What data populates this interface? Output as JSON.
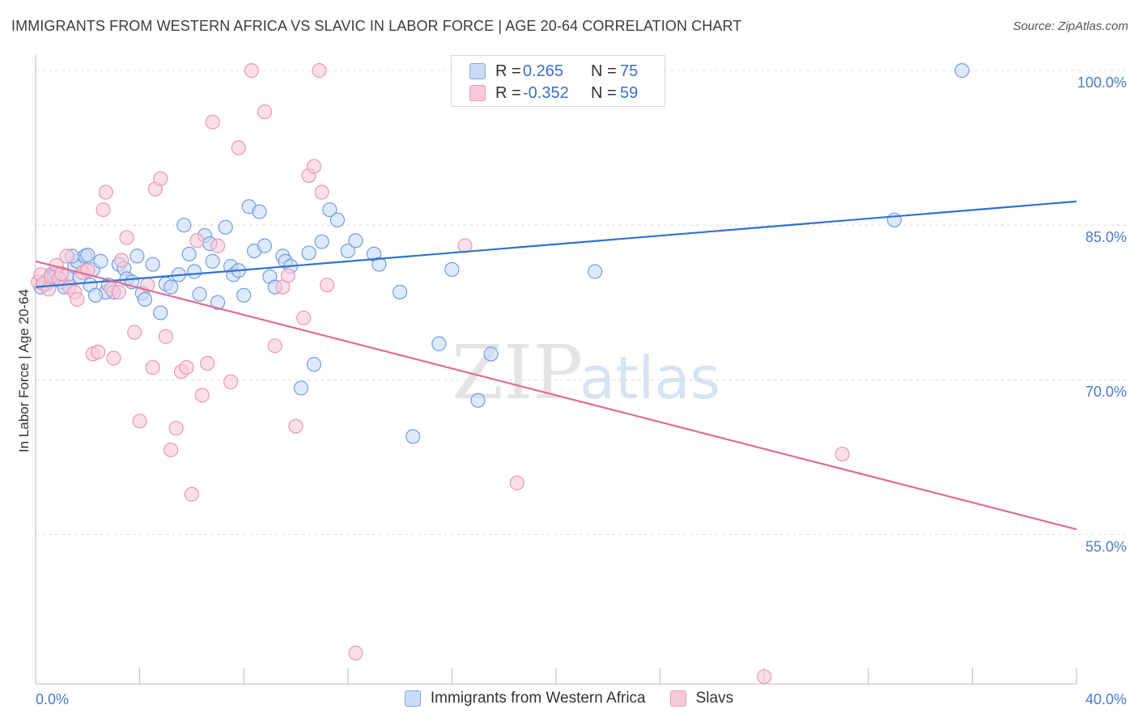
{
  "title": "IMMIGRANTS FROM WESTERN AFRICA VS SLAVIC IN LABOR FORCE | AGE 20-64 CORRELATION CHART",
  "source": "Source: ZipAtlas.com",
  "watermark": {
    "zip": "ZIP",
    "atlas": "atlas"
  },
  "legend": {
    "r_label": "R =",
    "n_label": "N =",
    "rows": [
      {
        "r": "0.265",
        "n": "75",
        "fill": "#c9dbf5",
        "stroke": "#7fa6e0"
      },
      {
        "r": "-0.352",
        "n": "59",
        "fill": "#f8cad9",
        "stroke": "#ec9ab4"
      }
    ]
  },
  "colors": {
    "blue_fill": "#c9dbf5",
    "blue_stroke": "#6f9de0",
    "blue_line": "#2f72d0",
    "pink_fill": "#f8cad9",
    "pink_stroke": "#ea98b2",
    "pink_line": "#e16b96",
    "tick_label": "#4a7cc9",
    "grid": "#dcdcdc"
  },
  "chart_data": {
    "type": "scatter",
    "title": "IMMIGRANTS FROM WESTERN AFRICA VS SLAVIC IN LABOR FORCE | AGE 20-64 CORRELATION CHART",
    "xlabel": "",
    "ylabel": "In Labor Force | Age 20-64",
    "xlim": [
      0,
      40
    ],
    "ylim": [
      40.5,
      101.5
    ],
    "x_tick_labels": [
      {
        "value": 0,
        "label": "0.0%"
      },
      {
        "value": 40,
        "label": "40.0%"
      }
    ],
    "y_tick_labels": [
      {
        "value": 100,
        "label": "100.0%"
      },
      {
        "value": 85,
        "label": "85.0%"
      },
      {
        "value": 70,
        "label": "70.0%"
      },
      {
        "value": 55,
        "label": "55.0%"
      }
    ],
    "grid": true,
    "series": [
      {
        "name": "Immigrants from Western Africa",
        "color": "#6f9de0",
        "trend": {
          "x": [
            0,
            40
          ],
          "y": [
            79.0,
            87.3
          ]
        },
        "points": [
          [
            0.2,
            79.0
          ],
          [
            0.4,
            79.3
          ],
          [
            0.5,
            79.8
          ],
          [
            0.6,
            80.2
          ],
          [
            0.7,
            80.0
          ],
          [
            0.8,
            80.3
          ],
          [
            1.0,
            79.5
          ],
          [
            1.1,
            79.0
          ],
          [
            1.2,
            80.1
          ],
          [
            1.5,
            81.0
          ],
          [
            1.6,
            81.5
          ],
          [
            1.7,
            80.0
          ],
          [
            1.9,
            82.0
          ],
          [
            2.0,
            82.1
          ],
          [
            2.1,
            79.2
          ],
          [
            2.2,
            80.7
          ],
          [
            2.5,
            81.5
          ],
          [
            2.7,
            78.5
          ],
          [
            2.8,
            79.2
          ],
          [
            3.0,
            78.5
          ],
          [
            3.2,
            81.2
          ],
          [
            3.4,
            80.8
          ],
          [
            3.5,
            79.8
          ],
          [
            3.7,
            79.5
          ],
          [
            3.9,
            82.0
          ],
          [
            4.1,
            78.4
          ],
          [
            4.2,
            77.8
          ],
          [
            4.5,
            81.2
          ],
          [
            4.8,
            76.5
          ],
          [
            5.0,
            79.3
          ],
          [
            5.2,
            79.0
          ],
          [
            5.5,
            80.2
          ],
          [
            5.7,
            85.0
          ],
          [
            5.9,
            82.2
          ],
          [
            6.1,
            80.5
          ],
          [
            6.3,
            78.3
          ],
          [
            6.5,
            84.0
          ],
          [
            6.7,
            83.2
          ],
          [
            6.8,
            81.5
          ],
          [
            7.0,
            77.5
          ],
          [
            7.3,
            84.8
          ],
          [
            7.5,
            81.0
          ],
          [
            7.6,
            80.2
          ],
          [
            7.8,
            80.6
          ],
          [
            8.0,
            78.2
          ],
          [
            8.2,
            86.8
          ],
          [
            8.4,
            82.5
          ],
          [
            8.6,
            86.3
          ],
          [
            8.8,
            83.0
          ],
          [
            9.0,
            80.0
          ],
          [
            9.2,
            79.0
          ],
          [
            9.5,
            82.0
          ],
          [
            9.6,
            81.5
          ],
          [
            9.8,
            81.0
          ],
          [
            10.2,
            69.2
          ],
          [
            10.5,
            82.3
          ],
          [
            10.7,
            71.5
          ],
          [
            11.0,
            83.4
          ],
          [
            11.3,
            86.5
          ],
          [
            11.6,
            85.5
          ],
          [
            12.0,
            82.5
          ],
          [
            12.3,
            83.5
          ],
          [
            13.0,
            82.2
          ],
          [
            13.2,
            81.2
          ],
          [
            14.0,
            78.5
          ],
          [
            14.5,
            64.5
          ],
          [
            15.5,
            73.5
          ],
          [
            16.0,
            80.7
          ],
          [
            17.0,
            68.0
          ],
          [
            17.5,
            72.5
          ],
          [
            21.5,
            80.5
          ],
          [
            33.0,
            85.5
          ],
          [
            35.6,
            100.0
          ],
          [
            1.4,
            82.0
          ],
          [
            2.3,
            78.2
          ]
        ]
      },
      {
        "name": "Slavs",
        "color": "#ea98b2",
        "trend": {
          "x": [
            0,
            40
          ],
          "y": [
            81.5,
            55.5
          ]
        },
        "points": [
          [
            0.1,
            79.5
          ],
          [
            0.2,
            80.2
          ],
          [
            0.3,
            79.3
          ],
          [
            0.5,
            78.8
          ],
          [
            0.6,
            80.0
          ],
          [
            0.8,
            81.1
          ],
          [
            0.9,
            79.8
          ],
          [
            1.0,
            80.3
          ],
          [
            1.2,
            82.0
          ],
          [
            1.3,
            79.0
          ],
          [
            1.5,
            78.5
          ],
          [
            1.6,
            77.8
          ],
          [
            1.8,
            80.4
          ],
          [
            2.0,
            80.6
          ],
          [
            2.2,
            72.5
          ],
          [
            2.4,
            72.7
          ],
          [
            2.6,
            86.5
          ],
          [
            2.7,
            88.2
          ],
          [
            2.9,
            78.8
          ],
          [
            3.0,
            72.1
          ],
          [
            3.2,
            78.5
          ],
          [
            3.3,
            81.6
          ],
          [
            3.5,
            83.8
          ],
          [
            3.8,
            74.6
          ],
          [
            4.0,
            66.0
          ],
          [
            4.3,
            79.2
          ],
          [
            4.5,
            71.2
          ],
          [
            4.6,
            88.5
          ],
          [
            4.8,
            89.5
          ],
          [
            5.0,
            74.2
          ],
          [
            5.2,
            63.2
          ],
          [
            5.4,
            65.3
          ],
          [
            5.6,
            70.8
          ],
          [
            5.8,
            71.2
          ],
          [
            6.0,
            58.9
          ],
          [
            6.2,
            83.5
          ],
          [
            6.4,
            68.5
          ],
          [
            6.6,
            71.6
          ],
          [
            6.8,
            95.0
          ],
          [
            7.0,
            83.0
          ],
          [
            7.5,
            69.8
          ],
          [
            7.8,
            92.5
          ],
          [
            8.3,
            100.0
          ],
          [
            8.8,
            96.0
          ],
          [
            9.2,
            73.3
          ],
          [
            9.5,
            79.0
          ],
          [
            9.7,
            80.1
          ],
          [
            10.0,
            65.5
          ],
          [
            10.3,
            76.0
          ],
          [
            10.5,
            89.8
          ],
          [
            10.7,
            90.7
          ],
          [
            11.0,
            88.2
          ],
          [
            11.2,
            79.2
          ],
          [
            10.9,
            100.0
          ],
          [
            12.3,
            43.5
          ],
          [
            16.5,
            83.0
          ],
          [
            18.5,
            60.0
          ],
          [
            31.0,
            62.8
          ],
          [
            28.0,
            41.2
          ]
        ]
      }
    ]
  }
}
